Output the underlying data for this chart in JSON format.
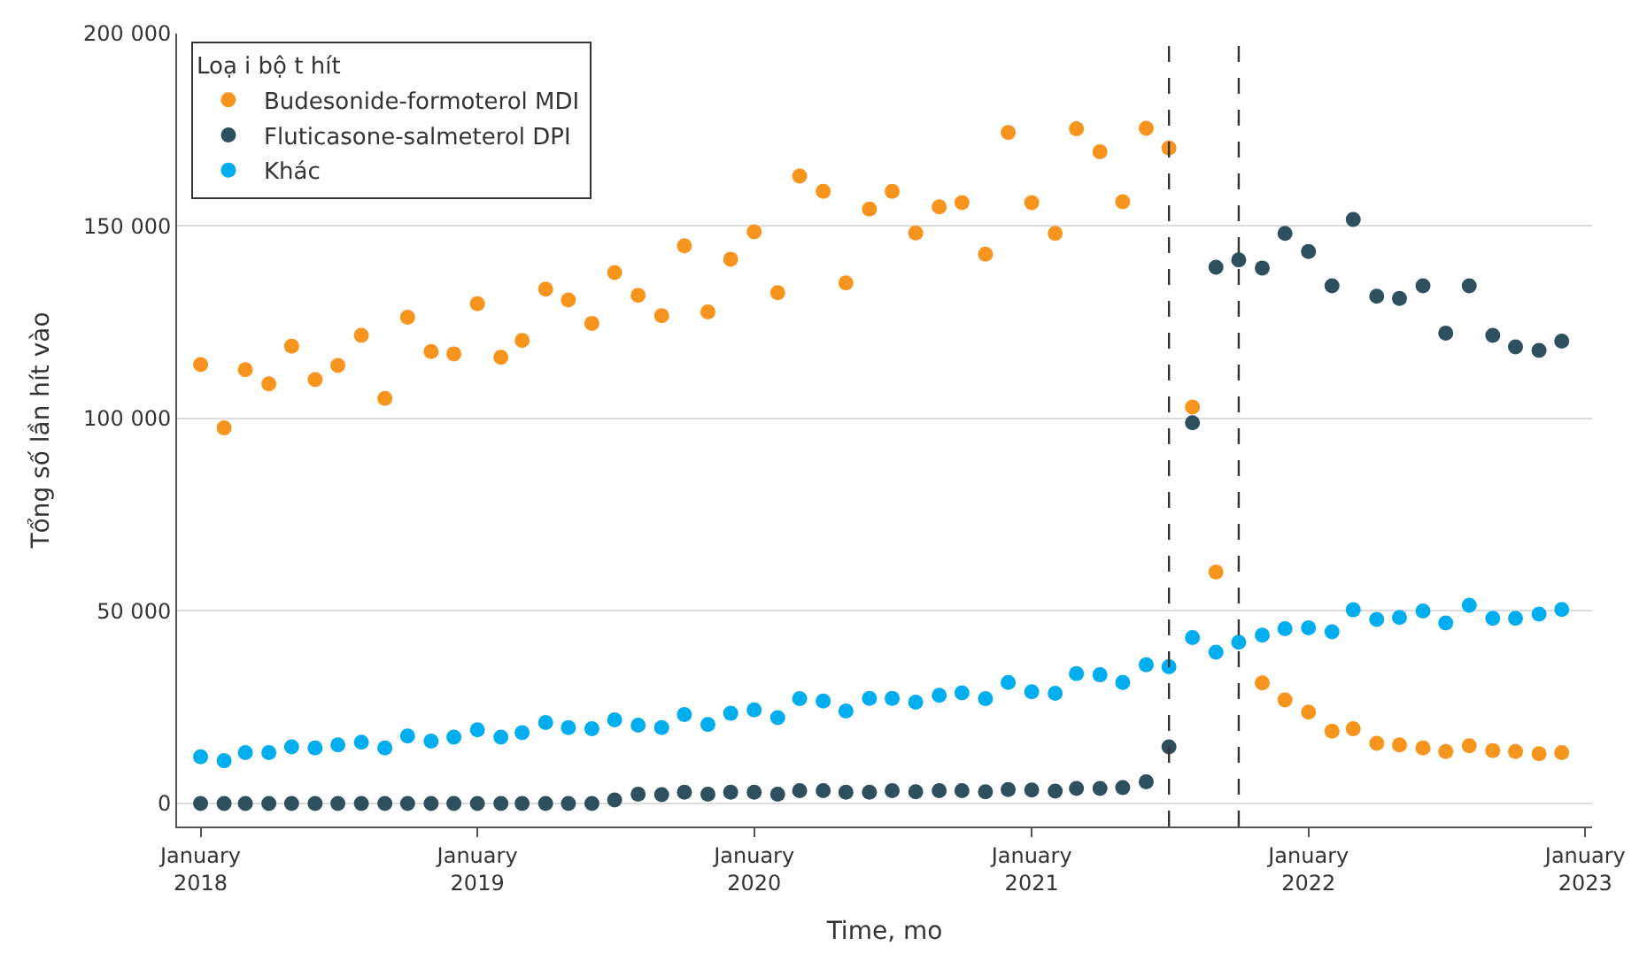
{
  "chart_data": {
    "type": "scatter",
    "xlabel": "Time, mo",
    "ylabel": "Tổng số lần hít vào",
    "legend_title": "Loạ i bộ t hít",
    "x": [
      "2018-01",
      "2018-02",
      "2018-03",
      "2018-04",
      "2018-05",
      "2018-06",
      "2018-07",
      "2018-08",
      "2018-09",
      "2018-10",
      "2018-11",
      "2018-12",
      "2019-01",
      "2019-02",
      "2019-03",
      "2019-04",
      "2019-05",
      "2019-06",
      "2019-07",
      "2019-08",
      "2019-09",
      "2019-10",
      "2019-11",
      "2019-12",
      "2020-01",
      "2020-02",
      "2020-03",
      "2020-04",
      "2020-05",
      "2020-06",
      "2020-07",
      "2020-08",
      "2020-09",
      "2020-10",
      "2020-11",
      "2020-12",
      "2021-01",
      "2021-02",
      "2021-03",
      "2021-04",
      "2021-05",
      "2021-06",
      "2021-07",
      "2021-08",
      "2021-09",
      "2021-10",
      "2021-11",
      "2021-12",
      "2022-01",
      "2022-02",
      "2022-03",
      "2022-04",
      "2022-05",
      "2022-06",
      "2022-07",
      "2022-08",
      "2022-09",
      "2022-10",
      "2022-11",
      "2022-12"
    ],
    "series": [
      {
        "name": "Budesonide-formoterol MDI",
        "color": "#f7941d",
        "values": [
          114000,
          97600,
          112700,
          109000,
          118800,
          110100,
          113800,
          121600,
          105200,
          126300,
          117400,
          116800,
          129800,
          115900,
          120300,
          133600,
          130800,
          124700,
          137900,
          132000,
          126700,
          144900,
          127700,
          141400,
          148500,
          132700,
          163000,
          159000,
          135200,
          154400,
          159000,
          148200,
          155000,
          156100,
          142700,
          174300,
          156100,
          148100,
          175300,
          169300,
          156300,
          175400,
          170300,
          103000,
          60100,
          null,
          31300,
          26900,
          23700,
          18800,
          19400,
          15600,
          15200,
          14400,
          13500,
          15000,
          13700,
          13500,
          12900,
          13200
        ]
      },
      {
        "name": "Fluticasone-salmeterol DPI",
        "color": "#2d4f5e",
        "values": [
          0,
          0,
          0,
          0,
          0,
          0,
          0,
          0,
          0,
          0,
          0,
          0,
          0,
          0,
          0,
          0,
          0,
          0,
          900,
          2400,
          2300,
          2900,
          2400,
          2900,
          2900,
          2400,
          3300,
          3300,
          2900,
          2900,
          3300,
          3000,
          3300,
          3300,
          3000,
          3600,
          3500,
          3200,
          3900,
          3900,
          4100,
          5600,
          14700,
          98900,
          139300,
          141200,
          139100,
          148100,
          143400,
          134500,
          151700,
          131800,
          131200,
          134500,
          122200,
          134500,
          121600,
          118600,
          117700,
          120100
        ]
      },
      {
        "name": "Khác",
        "color": "#00aeef",
        "values": [
          12100,
          11100,
          13200,
          13200,
          14700,
          14400,
          15200,
          15900,
          14400,
          17500,
          16200,
          17200,
          19100,
          17200,
          18400,
          21000,
          19700,
          19400,
          21700,
          20300,
          19700,
          23100,
          20500,
          23400,
          24300,
          22300,
          27200,
          26600,
          24000,
          27300,
          27300,
          26300,
          28100,
          28700,
          27200,
          31400,
          29000,
          28600,
          33700,
          33400,
          31400,
          36000,
          35500,
          43100,
          39300,
          41900,
          43700,
          45400,
          45600,
          44600,
          50300,
          47800,
          48300,
          50000,
          46900,
          51500,
          48100,
          48100,
          49200,
          50400
        ]
      }
    ],
    "xlim": [
      "2017-12-01",
      "2023-01-10"
    ],
    "xticks": [
      {
        "value": "2018-01",
        "label": "January\n2018"
      },
      {
        "value": "2019-01",
        "label": "January\n2019"
      },
      {
        "value": "2020-01",
        "label": "January\n2020"
      },
      {
        "value": "2021-01",
        "label": "January\n2021"
      },
      {
        "value": "2022-01",
        "label": "January\n2022"
      },
      {
        "value": "2023-01",
        "label": "January\n2023"
      }
    ],
    "ylim": [
      -6000,
      200000
    ],
    "yticks": [
      0,
      {
        "value": 50000,
        "label": "50 000"
      },
      {
        "value": 100000,
        "label": "100 000"
      },
      {
        "value": 150000,
        "label": "150 000"
      },
      {
        "value": 200000,
        "label": "200 000"
      }
    ],
    "ref_lines": [
      {
        "axis": "x",
        "value": "2021-07",
        "label": null,
        "color": "#333333",
        "line_style": "dashed"
      },
      {
        "axis": "x",
        "value": "2021-10",
        "label": null,
        "color": "#333333",
        "line_style": "dashed"
      }
    ],
    "grid": "y",
    "legend": "top left",
    "marker": "circle"
  }
}
